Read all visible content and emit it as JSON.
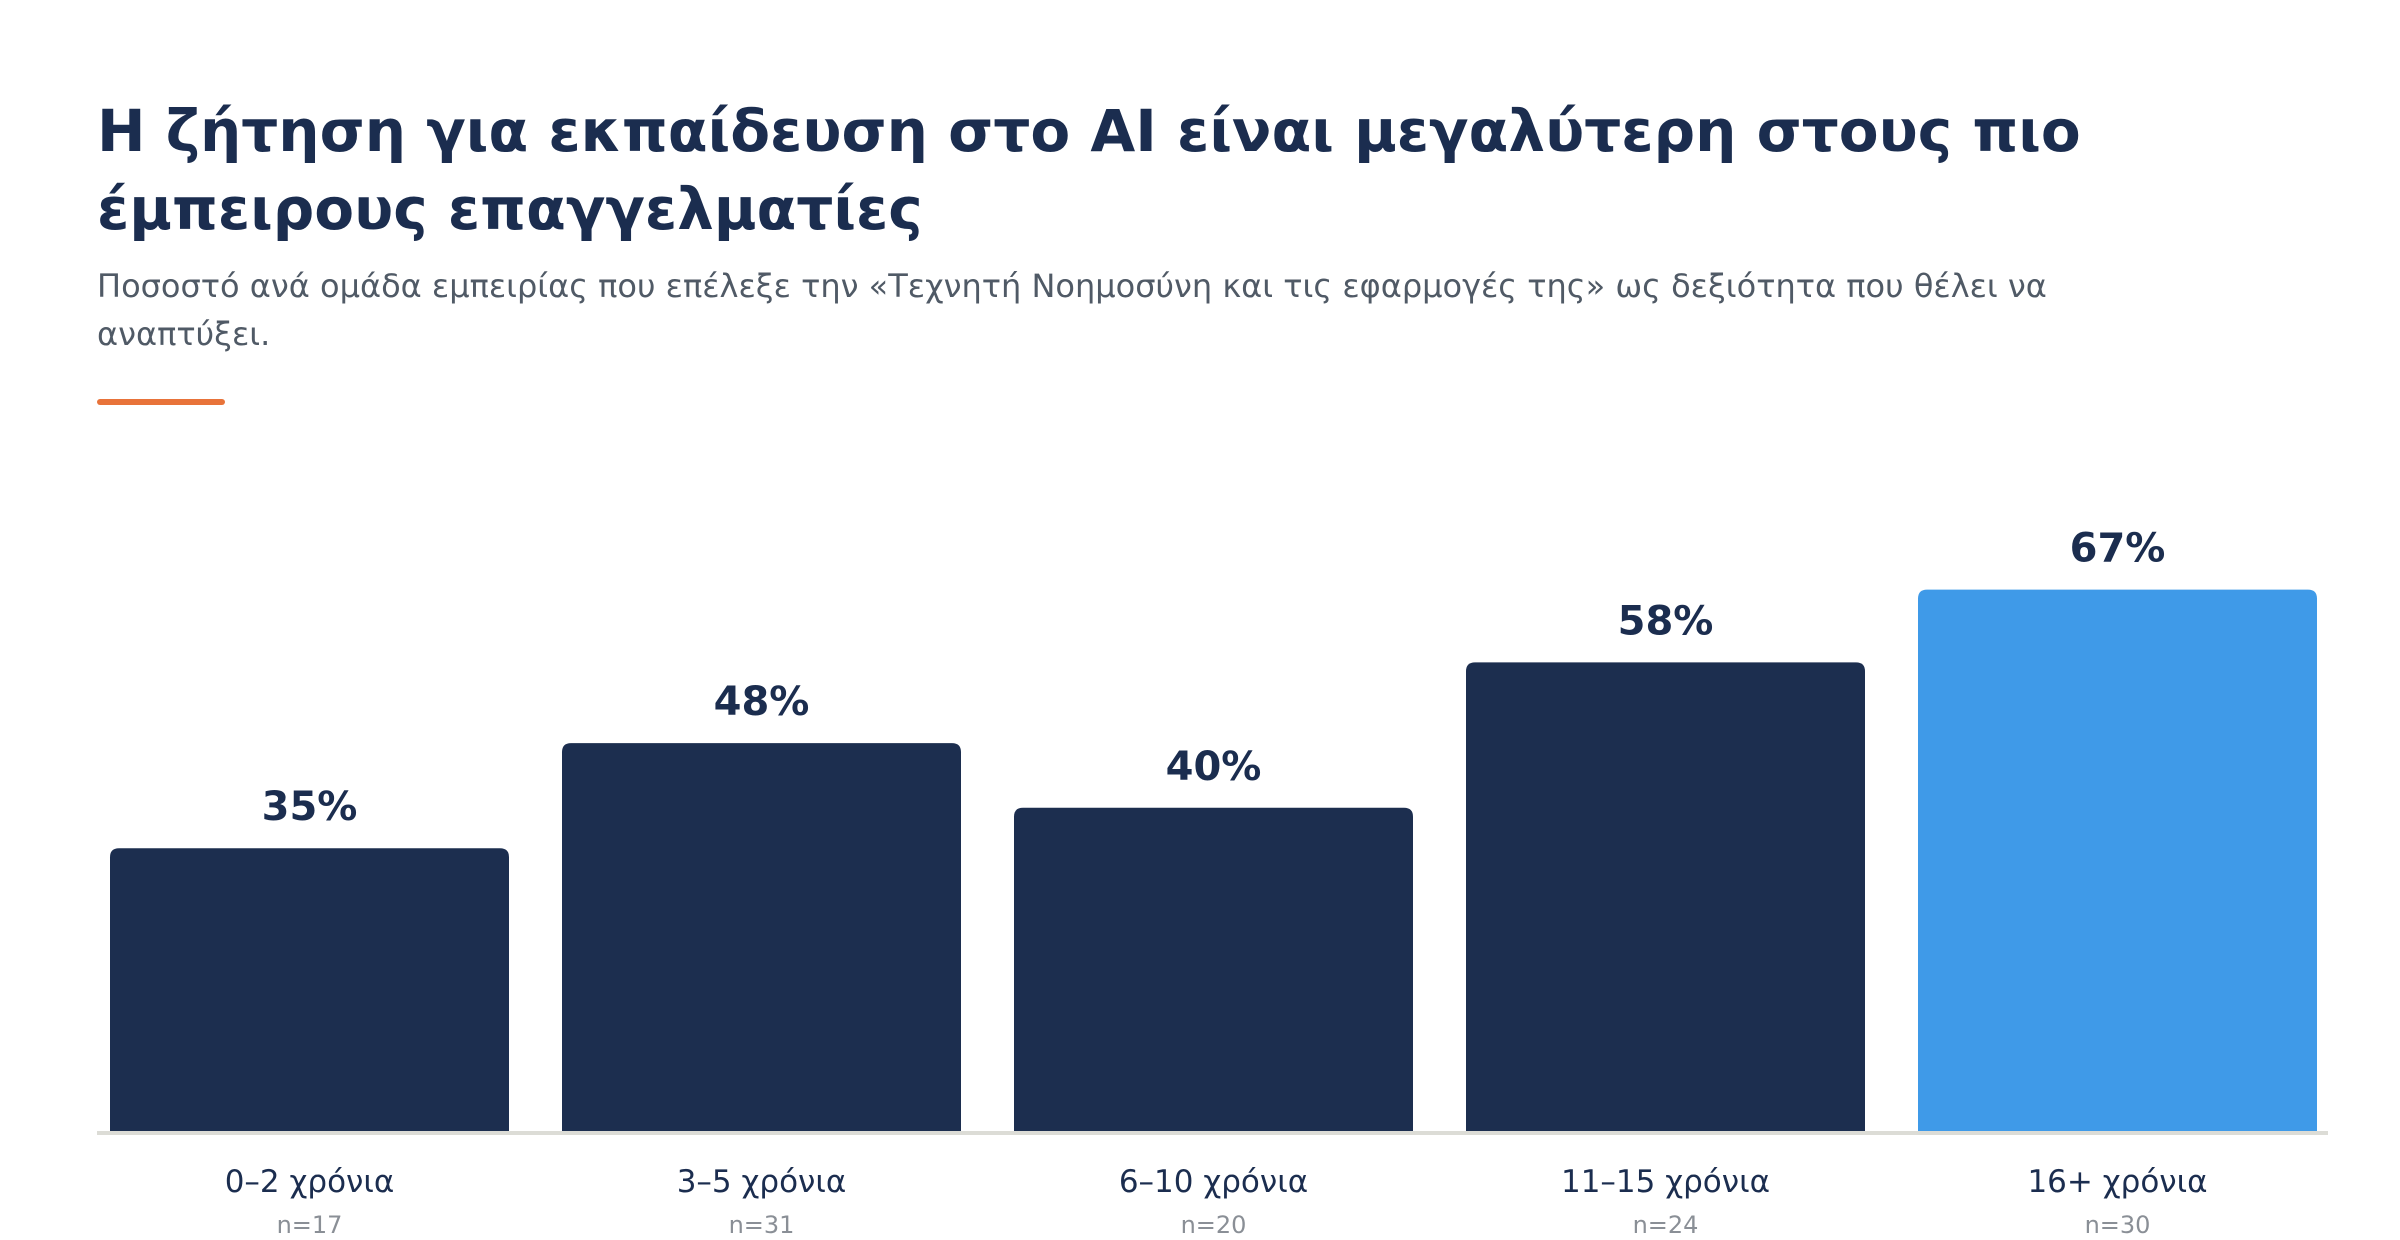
{
  "title": "Η ζήτηση για εκπαίδευση στο AI είναι μεγαλύτερη στους πιο έμπειρους επαγγελματίες",
  "subtitle": "Ποσοστό ανά ομάδα εμπειρίας που επέλεξε την «Τεχνητή Νοημοσύνη και τις εφαρμογές της» ως δεξιότητα που θέλει να αναπτύξει.",
  "colors": {
    "bar": "#1c2e4f",
    "highlight": "#3f9ae8",
    "text": "#1b2d4f",
    "accent": "#e8733a",
    "baseline": "#dcdcd6",
    "muted": "#8a8f96"
  },
  "chart_data": {
    "type": "bar",
    "title": "Η ζήτηση για εκπαίδευση στο AI είναι μεγαλύτερη στους πιο έμπειρους επαγγελματίες",
    "subtitle": "Ποσοστό ανά ομάδα εμπειρίας που επέλεξε την «Τεχνητή Νοημοσύνη και τις εφαρμογές της» ως δεξιότητα που θέλει να αναπτύξει.",
    "categories": [
      "0–2 χρόνια",
      "3–5 χρόνια",
      "6–10 χρόνια",
      "11–15 χρόνια",
      "16+ χρόνια"
    ],
    "values": [
      35,
      48,
      40,
      58,
      67
    ],
    "value_labels": [
      "35%",
      "48%",
      "40%",
      "58%",
      "67%"
    ],
    "sample_sizes": [
      "n=17",
      "n=31",
      "n=20",
      "n=24",
      "n=30"
    ],
    "highlight_index": 4,
    "ylim": [
      0,
      100
    ],
    "grid": false,
    "legend": "none",
    "xlabel": "",
    "ylabel": ""
  }
}
